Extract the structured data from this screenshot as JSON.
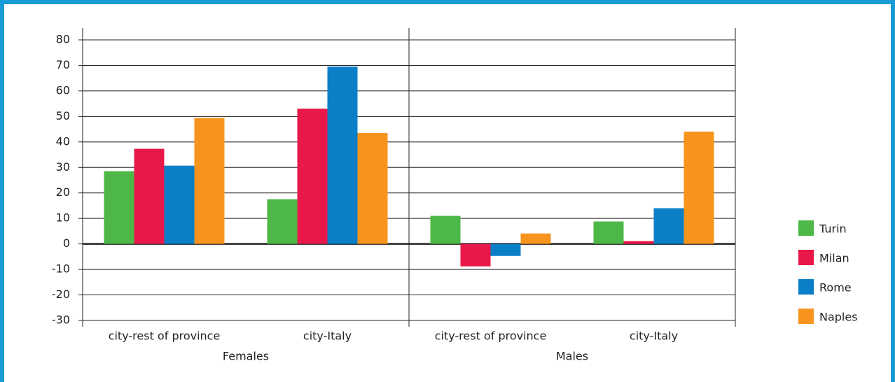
{
  "chart_data": {
    "type": "bar",
    "groups": [
      {
        "name": "Females",
        "categories": [
          "city-rest of province",
          "city-Italy"
        ]
      },
      {
        "name": "Males",
        "categories": [
          "city-rest of province",
          "city-Italy"
        ]
      }
    ],
    "series": [
      {
        "name": "Turin",
        "color": "#4db848",
        "values": [
          28.5,
          17.5,
          11,
          8.8
        ]
      },
      {
        "name": "Milan",
        "color": "#e8194a",
        "values": [
          37.3,
          53,
          -8.8,
          1.1
        ]
      },
      {
        "name": "Rome",
        "color": "#0a7ec7",
        "values": [
          30.7,
          69.5,
          -4.7,
          14
        ]
      },
      {
        "name": "Naples",
        "color": "#f7941d",
        "values": [
          49.3,
          43.5,
          4.1,
          44
        ]
      }
    ],
    "ylim": [
      -30,
      80
    ],
    "yticks": [
      -30,
      -20,
      -10,
      0,
      10,
      20,
      30,
      40,
      50,
      60,
      70,
      80
    ],
    "grid": true,
    "legend": "right"
  }
}
